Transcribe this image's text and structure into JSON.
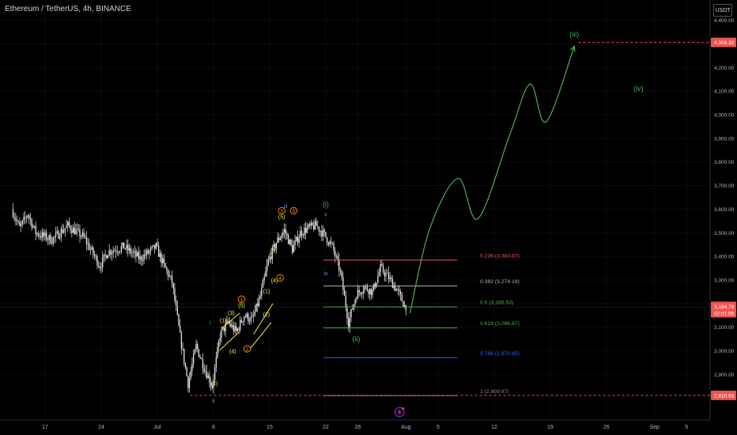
{
  "title": "Ethereum / TetherUS, 4h, BINANCE",
  "unit_button": "USDT",
  "colors": {
    "background": "#000000",
    "candle": "#e6e6e6",
    "wave_green": "#4caf50",
    "wave_blue": "#42a5f5",
    "wave_orange": "#ff9800",
    "wave_yellow": "#ffeb3b",
    "fib_red": "#ef5350",
    "fib_blue": "#2962ff",
    "price_tag": "#ef5350",
    "projection": "#4caf50"
  },
  "chart_data": {
    "type": "candlestick",
    "symbol": "Ethereum / TetherUS",
    "timeframe": "4h",
    "exchange": "BINANCE",
    "x_ticks": [
      "17",
      "24",
      "Jul",
      "8",
      "15",
      "22",
      "26",
      "Aug",
      "5",
      "12",
      "19",
      "26",
      "Sep",
      "5"
    ],
    "y_ticks": [
      "2,900.00",
      "3,000.00",
      "3,100.00",
      "3,200.00",
      "3,300.00",
      "3,400.00",
      "3,500.00",
      "3,600.00",
      "3,700.00",
      "3,800.00",
      "3,900.00",
      "4,000.00",
      "4,100.00",
      "4,200.00",
      "4,300.00",
      "4,400.00"
    ],
    "ylim": [
      2760,
      4430
    ],
    "price_path": [
      [
        "2024-06-13",
        3600
      ],
      [
        "2024-06-14",
        3520
      ],
      [
        "2024-06-15",
        3580
      ],
      [
        "2024-06-16",
        3500
      ],
      [
        "2024-06-18",
        3470
      ],
      [
        "2024-06-20",
        3530
      ],
      [
        "2024-06-22",
        3480
      ],
      [
        "2024-06-24",
        3360
      ],
      [
        "2024-06-25",
        3420
      ],
      [
        "2024-06-27",
        3440
      ],
      [
        "2024-06-29",
        3390
      ],
      [
        "2024-07-01",
        3440
      ],
      [
        "2024-07-02",
        3360
      ],
      [
        "2024-07-03",
        3290
      ],
      [
        "2024-07-04",
        3060
      ],
      [
        "2024-07-05",
        2860
      ],
      [
        "2024-07-06",
        3020
      ],
      [
        "2024-07-07",
        2930
      ],
      [
        "2024-07-08",
        2850
      ],
      [
        "2024-07-09",
        3070
      ],
      [
        "2024-07-10",
        3120
      ],
      [
        "2024-07-11",
        3080
      ],
      [
        "2024-07-12",
        3150
      ],
      [
        "2024-07-13",
        3130
      ],
      [
        "2024-07-14",
        3230
      ],
      [
        "2024-07-15",
        3380
      ],
      [
        "2024-07-16",
        3460
      ],
      [
        "2024-07-17",
        3510
      ],
      [
        "2024-07-18",
        3430
      ],
      [
        "2024-07-19",
        3500
      ],
      [
        "2024-07-20",
        3520
      ],
      [
        "2024-07-21",
        3530
      ],
      [
        "2024-07-22",
        3490
      ],
      [
        "2024-07-23",
        3440
      ],
      [
        "2024-07-24",
        3330
      ],
      [
        "2024-07-25",
        3120
      ],
      [
        "2024-07-26",
        3240
      ],
      [
        "2024-07-27",
        3270
      ],
      [
        "2024-07-28",
        3250
      ],
      [
        "2024-07-29",
        3350
      ],
      [
        "2024-07-30",
        3310
      ],
      [
        "2024-07-31",
        3260
      ],
      [
        "2024-08-01",
        3190
      ]
    ],
    "elliott_labels": [
      {
        "text": "(i)",
        "color": "wave_green",
        "date": "2024-07-22",
        "price": 3610
      },
      {
        "text": "v",
        "color": "wave_blue",
        "date": "2024-07-22",
        "price": 3570
      },
      {
        "text": "iii",
        "color": "wave_blue",
        "date": "2024-07-17",
        "price": 3605
      },
      {
        "text": "3",
        "color": "wave_orange",
        "date": "2024-07-16.5",
        "price": 3585
      },
      {
        "text": "5",
        "color": "wave_orange",
        "date": "2024-07-18",
        "price": 3585
      },
      {
        "text": "(5)",
        "color": "wave_yellow",
        "date": "2024-07-16.5",
        "price": 3560
      },
      {
        "text": "(3)",
        "color": "wave_yellow",
        "date": "2024-07-15.5",
        "price": 3415
      },
      {
        "text": "(4)",
        "color": "wave_yellow",
        "date": "2024-07-15.6",
        "price": 3290
      },
      {
        "text": "4",
        "color": "wave_orange",
        "date": "2024-07-16.3",
        "price": 3300
      },
      {
        "text": "(1)",
        "color": "wave_yellow",
        "date": "2024-07-14.6",
        "price": 3245
      },
      {
        "text": "(2)",
        "color": "wave_yellow",
        "date": "2024-07-14.6",
        "price": 3145
      },
      {
        "text": "1",
        "color": "wave_orange",
        "date": "2024-07-11.5",
        "price": 3210
      },
      {
        "text": "(5)",
        "color": "wave_yellow",
        "date": "2024-07-11.5",
        "price": 3185
      },
      {
        "text": "(3)",
        "color": "wave_yellow",
        "date": "2024-07-10.2",
        "price": 3153
      },
      {
        "text": "(1)",
        "color": "wave_yellow",
        "date": "2024-07-09.2",
        "price": 3120
      },
      {
        "text": "(4)",
        "color": "wave_yellow",
        "date": "2024-07-10.4",
        "price": 2990
      },
      {
        "text": "2",
        "color": "wave_orange",
        "date": "2024-07-12.2",
        "price": 3000
      },
      {
        "text": "(2)",
        "color": "wave_yellow",
        "date": "2024-07-08.1",
        "price": 2855
      },
      {
        "text": "i",
        "color": "wave_blue",
        "date": "2024-07-07.6",
        "price": 3110
      },
      {
        "text": "ii",
        "color": "wave_blue",
        "date": "2024-07-08",
        "price": 2780
      },
      {
        "text": "iv",
        "color": "wave_blue",
        "date": "2024-07-22",
        "price": 3320
      },
      {
        "text": "(ii)",
        "color": "wave_green",
        "date": "2024-07-25.8",
        "price": 3040
      },
      {
        "text": "(iii)",
        "color": "wave_green",
        "date": "2024-08-22",
        "price": 4330
      },
      {
        "text": "(iv)",
        "color": "wave_green",
        "date": "2024-08-30",
        "price": 4100
      }
    ],
    "projection_path": [
      [
        "2024-08-01.5",
        3160
      ],
      [
        "2024-08-04",
        3520
      ],
      [
        "2024-08-07.5",
        3730
      ],
      [
        "2024-08-10",
        3560
      ],
      [
        "2024-08-14",
        3920
      ],
      [
        "2024-08-16.5",
        4130
      ],
      [
        "2024-08-18.5",
        3970
      ],
      [
        "2024-08-22",
        4290
      ]
    ],
    "fibonacci": {
      "start_date": "2024-07-21.7",
      "end_date": "2024-08-07.4",
      "levels": [
        {
          "ratio": "0.236",
          "price": 3383.87,
          "label": "0.236 (3,383.87)",
          "color": "fib_red"
        },
        {
          "ratio": "0.382",
          "price": 3274.18,
          "label": "0.382 (3,274.18)",
          "color": "#b0b0b0"
        },
        {
          "ratio": "0.5",
          "price": 3185.53,
          "label": "0.5 (3,185.53)",
          "color": "wave_green"
        },
        {
          "ratio": "0.618",
          "price": 3096.87,
          "label": "0.618 (3,096.87)",
          "color": "wave_green"
        },
        {
          "ratio": "0.786",
          "price": 2970.65,
          "label": "0.786 (2,970.65)",
          "color": "fib_blue"
        },
        {
          "ratio": "1",
          "price": 2809.87,
          "label": "1 (2,809.87)",
          "color": "#888888"
        }
      ]
    },
    "horizontal_lines": [
      {
        "price": 4306.32,
        "label": "4,306.32",
        "from_date": "2024-08-22.5"
      },
      {
        "price": 2810.93,
        "label": "2,810.93",
        "from_date": "2024-07-05.1"
      }
    ],
    "last_price": {
      "price": 3184.79,
      "label": "3,184.79",
      "countdown": "02:01:55"
    }
  }
}
